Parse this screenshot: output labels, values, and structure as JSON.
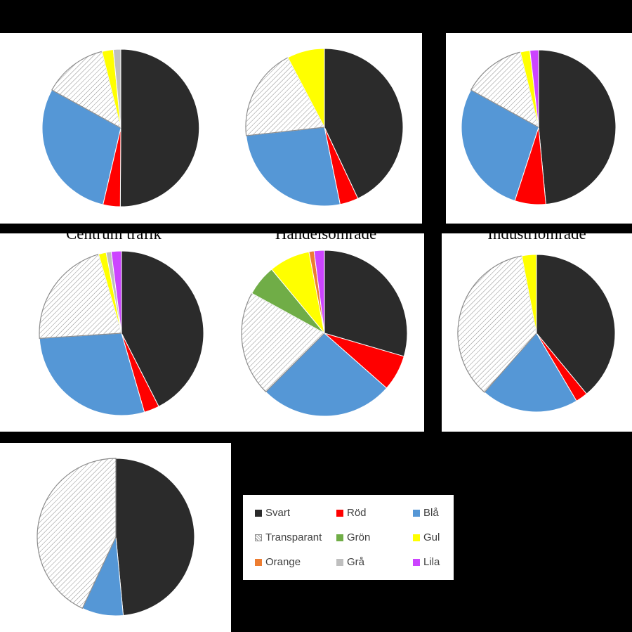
{
  "colors": {
    "Svart": "#2b2b2b",
    "Röd": "#ff0000",
    "Blå": "#5597d6",
    "Transparant": "pattern",
    "Grön": "#70ad47",
    "Gul": "#ffff00",
    "Orange": "#ed7d31",
    "Grå": "#bfbfbf",
    "Lila": "#cc44ff"
  },
  "legend": {
    "items": [
      "Svart",
      "Röd",
      "Blå",
      "Transparant",
      "Grön",
      "Gul",
      "Orange",
      "Grå",
      "Lila"
    ]
  },
  "chart_data": [
    {
      "type": "pie",
      "title": "",
      "start_angle_deg": 0,
      "direction": "clockwise",
      "slices": [
        {
          "label": "Svart",
          "value": 49.5
        },
        {
          "label": "Röd",
          "value": 3.5
        },
        {
          "label": "Blå",
          "value": 29
        },
        {
          "label": "Transparant",
          "value": 13
        },
        {
          "label": "Gul",
          "value": 2.3
        },
        {
          "label": "Grå",
          "value": 1.5
        }
      ]
    },
    {
      "type": "pie",
      "title": "",
      "start_angle_deg": 0,
      "direction": "clockwise",
      "slices": [
        {
          "label": "Svart",
          "value": 43
        },
        {
          "label": "Röd",
          "value": 3.8
        },
        {
          "label": "Blå",
          "value": 26.5
        },
        {
          "label": "Transparant",
          "value": 19
        },
        {
          "label": "Gul",
          "value": 7.7
        }
      ]
    },
    {
      "type": "pie",
      "title": "",
      "start_angle_deg": 0,
      "direction": "clockwise",
      "slices": [
        {
          "label": "Svart",
          "value": 48.5
        },
        {
          "label": "Röd",
          "value": 6.5
        },
        {
          "label": "Blå",
          "value": 28
        },
        {
          "label": "Transparant",
          "value": 13.2
        },
        {
          "label": "Gul",
          "value": 2
        },
        {
          "label": "Lila",
          "value": 1.8
        }
      ]
    },
    {
      "type": "pie",
      "title": "Centrum trafik",
      "start_angle_deg": 0,
      "direction": "clockwise",
      "slices": [
        {
          "label": "Svart",
          "value": 42.5
        },
        {
          "label": "Röd",
          "value": 3
        },
        {
          "label": "Blå",
          "value": 28.5
        },
        {
          "label": "Transparant",
          "value": 21.5
        },
        {
          "label": "Gul",
          "value": 1.5
        },
        {
          "label": "Grå",
          "value": 1
        },
        {
          "label": "Lila",
          "value": 2
        }
      ]
    },
    {
      "type": "pie",
      "title": "Handelsområde",
      "start_angle_deg": 0,
      "direction": "clockwise",
      "slices": [
        {
          "label": "Svart",
          "value": 29.5
        },
        {
          "label": "Röd",
          "value": 7
        },
        {
          "label": "Blå",
          "value": 26
        },
        {
          "label": "Transparant",
          "value": 20.5
        },
        {
          "label": "Grön",
          "value": 6
        },
        {
          "label": "Gul",
          "value": 8
        },
        {
          "label": "Orange",
          "value": 1
        },
        {
          "label": "Lila",
          "value": 2
        }
      ]
    },
    {
      "type": "pie",
      "title": "Industriområde",
      "start_angle_deg": 0,
      "direction": "clockwise",
      "slices": [
        {
          "label": "Svart",
          "value": 39
        },
        {
          "label": "Röd",
          "value": 2.5
        },
        {
          "label": "Blå",
          "value": 20
        },
        {
          "label": "Transparant",
          "value": 35.5
        },
        {
          "label": "Gul",
          "value": 3
        }
      ]
    },
    {
      "type": "pie",
      "title": "",
      "start_angle_deg": 0,
      "direction": "clockwise",
      "slices": [
        {
          "label": "Svart",
          "value": 48.5
        },
        {
          "label": "Blå",
          "value": 8.5
        },
        {
          "label": "Transparant",
          "value": 43
        }
      ]
    }
  ]
}
